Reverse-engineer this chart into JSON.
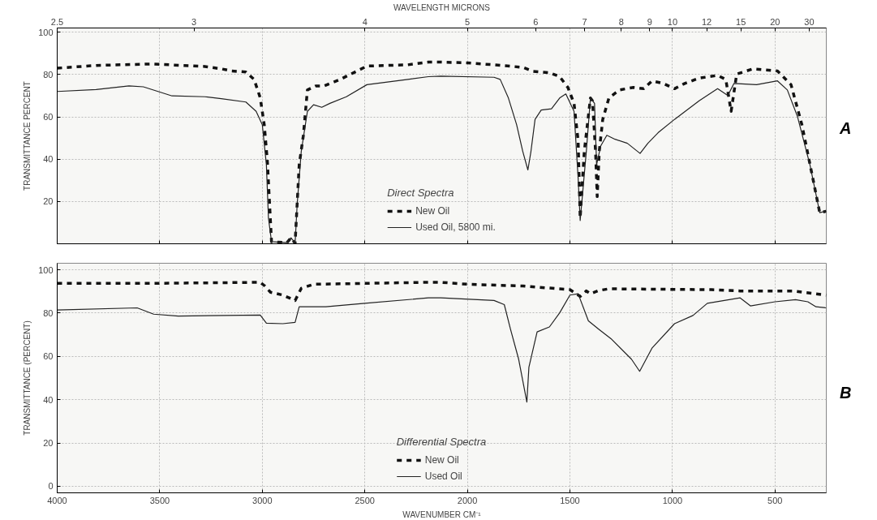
{
  "chart_data": [
    {
      "type": "line",
      "ylabel": "TRANSMITTANCE PERCENT",
      "x2label": "WAVELENGTH MICRONS",
      "legend_title": "Direct Spectra",
      "annotations": [
        "A",
        "2.5",
        "3",
        "4",
        "5",
        "6",
        "7",
        "8",
        "9",
        "10",
        "12",
        "15",
        "20",
        "30"
      ],
      "xlim": [
        4000,
        250
      ],
      "ylim": [
        0,
        102
      ],
      "yticks": [
        20,
        40,
        60,
        80,
        100
      ],
      "xticks": [
        4000,
        3500,
        3000,
        2500,
        2000,
        1500,
        1000,
        500
      ],
      "tick_labels": "y",
      "grid": true,
      "legend": "bottom",
      "series": [
        {
          "name": "New Oil",
          "color": "#111111",
          "line_style": "dashed",
          "x": [
            4000,
            3810,
            3540,
            3280,
            3200,
            3150,
            3080,
            3040,
            3010,
            2990,
            2975,
            2955,
            2880,
            2860,
            2840,
            2820,
            2800,
            2780,
            2740,
            2700,
            2620,
            2490,
            2290,
            2190,
            2130,
            2000,
            1870,
            1730,
            1680,
            1600,
            1550,
            1510,
            1480,
            1460,
            1450,
            1430,
            1400,
            1390,
            1375,
            1367,
            1357,
            1340,
            1310,
            1260,
            1190,
            1140,
            1100,
            1045,
            990,
            940,
            870,
            780,
            740,
            714,
            687,
            607,
            488,
            422,
            369,
            316,
            282,
            250
          ],
          "values": [
            83,
            84.3,
            85,
            83.8,
            82.7,
            81.7,
            81.2,
            77.7,
            69,
            56,
            38.7,
            1,
            0.5,
            2.8,
            0.3,
            37.4,
            51,
            72.7,
            74.6,
            74.6,
            77.7,
            84,
            84.6,
            85.9,
            85.9,
            85.5,
            84.6,
            83.4,
            81.5,
            80.9,
            79,
            73.9,
            66.4,
            48.7,
            12.2,
            43.7,
            68.9,
            67.6,
            43.7,
            22.3,
            43.7,
            58.8,
            68.9,
            72.7,
            73.9,
            73.3,
            77,
            75.8,
            73.3,
            75.8,
            78.3,
            79.6,
            77.7,
            62.6,
            80.2,
            82.7,
            81.7,
            75.2,
            56.3,
            31.1,
            14.7,
            15.4
          ]
        },
        {
          "name": "Used Oil, 5800 mi.",
          "color": "#222222",
          "line_style": "solid",
          "x": [
            4000,
            3810,
            3650,
            3580,
            3440,
            3280,
            3200,
            3080,
            3030,
            3000,
            2980,
            2970,
            2955,
            2880,
            2860,
            2840,
            2830,
            2810,
            2780,
            2750,
            2710,
            2670,
            2590,
            2490,
            2290,
            2190,
            2130,
            1870,
            1840,
            1800,
            1760,
            1730,
            1705,
            1690,
            1670,
            1640,
            1590,
            1550,
            1520,
            1480,
            1460,
            1450,
            1420,
            1400,
            1380,
            1370,
            1350,
            1320,
            1280,
            1220,
            1158,
            1120,
            1070,
            990,
            870,
            780,
            730,
            700,
            590,
            488,
            440,
            390,
            330,
            282,
            250
          ],
          "values": [
            72,
            72.9,
            74.6,
            74.2,
            69.9,
            69.5,
            68.6,
            67,
            62.6,
            56.3,
            37.4,
            12.2,
            1,
            0.5,
            2.8,
            0.3,
            18.5,
            43.7,
            62.6,
            65.7,
            64.5,
            66.4,
            69.5,
            75.2,
            77.7,
            79,
            79.2,
            78.7,
            77.7,
            68.9,
            56.3,
            43.7,
            34.9,
            43.7,
            58.8,
            63.2,
            63.8,
            68.9,
            70.8,
            62.6,
            31.1,
            11,
            43.7,
            68.9,
            66.4,
            37.4,
            46.2,
            51.3,
            49.4,
            47.5,
            42.7,
            47.5,
            52.5,
            58.8,
            67.6,
            73.3,
            70.1,
            75.8,
            75.2,
            77,
            72.7,
            60,
            37.4,
            14.7,
            15.4
          ]
        }
      ]
    },
    {
      "type": "line",
      "xlabel": "WAVENUMBER CM⁻¹",
      "ylabel": "TRANSMITTANCE (PERCENT)",
      "legend_title": "Differential Spectra",
      "annotations": [
        "B"
      ],
      "xlim": [
        4000,
        250
      ],
      "ylim": [
        -3,
        103
      ],
      "xticks": [
        4000,
        3500,
        3000,
        2500,
        2000,
        1500,
        1000,
        500
      ],
      "yticks": [
        0,
        20,
        40,
        60,
        80,
        100
      ],
      "grid": true,
      "legend": "bottom",
      "series": [
        {
          "name": "New Oil",
          "color": "#111111",
          "line_style": "dashed",
          "x": [
            4000,
            3540,
            3010,
            2990,
            2960,
            2900,
            2840,
            2810,
            2750,
            2190,
            2130,
            2000,
            1730,
            1500,
            1450,
            1420,
            1400,
            1360,
            1310,
            810,
            670,
            410,
            250
          ],
          "values": [
            93.7,
            93.7,
            94.2,
            92.7,
            89.6,
            88.3,
            85.8,
            91.4,
            93.3,
            94.2,
            94.2,
            93.3,
            92.5,
            90.8,
            87.7,
            90.2,
            88.9,
            90.4,
            91.2,
            90.8,
            90.2,
            90.2,
            88.3
          ]
        },
        {
          "name": "Used Oil",
          "color": "#222222",
          "line_style": "solid",
          "x": [
            4000,
            3610,
            3530,
            3410,
            3010,
            2980,
            2900,
            2840,
            2820,
            2690,
            2500,
            2190,
            2130,
            1870,
            1820,
            1790,
            1750,
            1710,
            1700,
            1660,
            1600,
            1550,
            1500,
            1460,
            1410,
            1360,
            1300,
            1200,
            1160,
            1100,
            990,
            900,
            830,
            670,
            620,
            500,
            400,
            340,
            300,
            250
          ],
          "values": [
            81.4,
            82.4,
            79.5,
            78.6,
            79.1,
            75.3,
            75.1,
            75.7,
            82.9,
            82.9,
            84.5,
            87,
            87,
            85.8,
            83.9,
            72.6,
            58.7,
            38.9,
            55,
            71.3,
            73.6,
            80.1,
            88.3,
            88.9,
            76.4,
            72.6,
            68.2,
            58.7,
            53.1,
            63.8,
            75.1,
            78.9,
            84.5,
            87,
            83.3,
            85.2,
            86.2,
            85.2,
            82.9,
            82.4
          ]
        }
      ]
    }
  ]
}
